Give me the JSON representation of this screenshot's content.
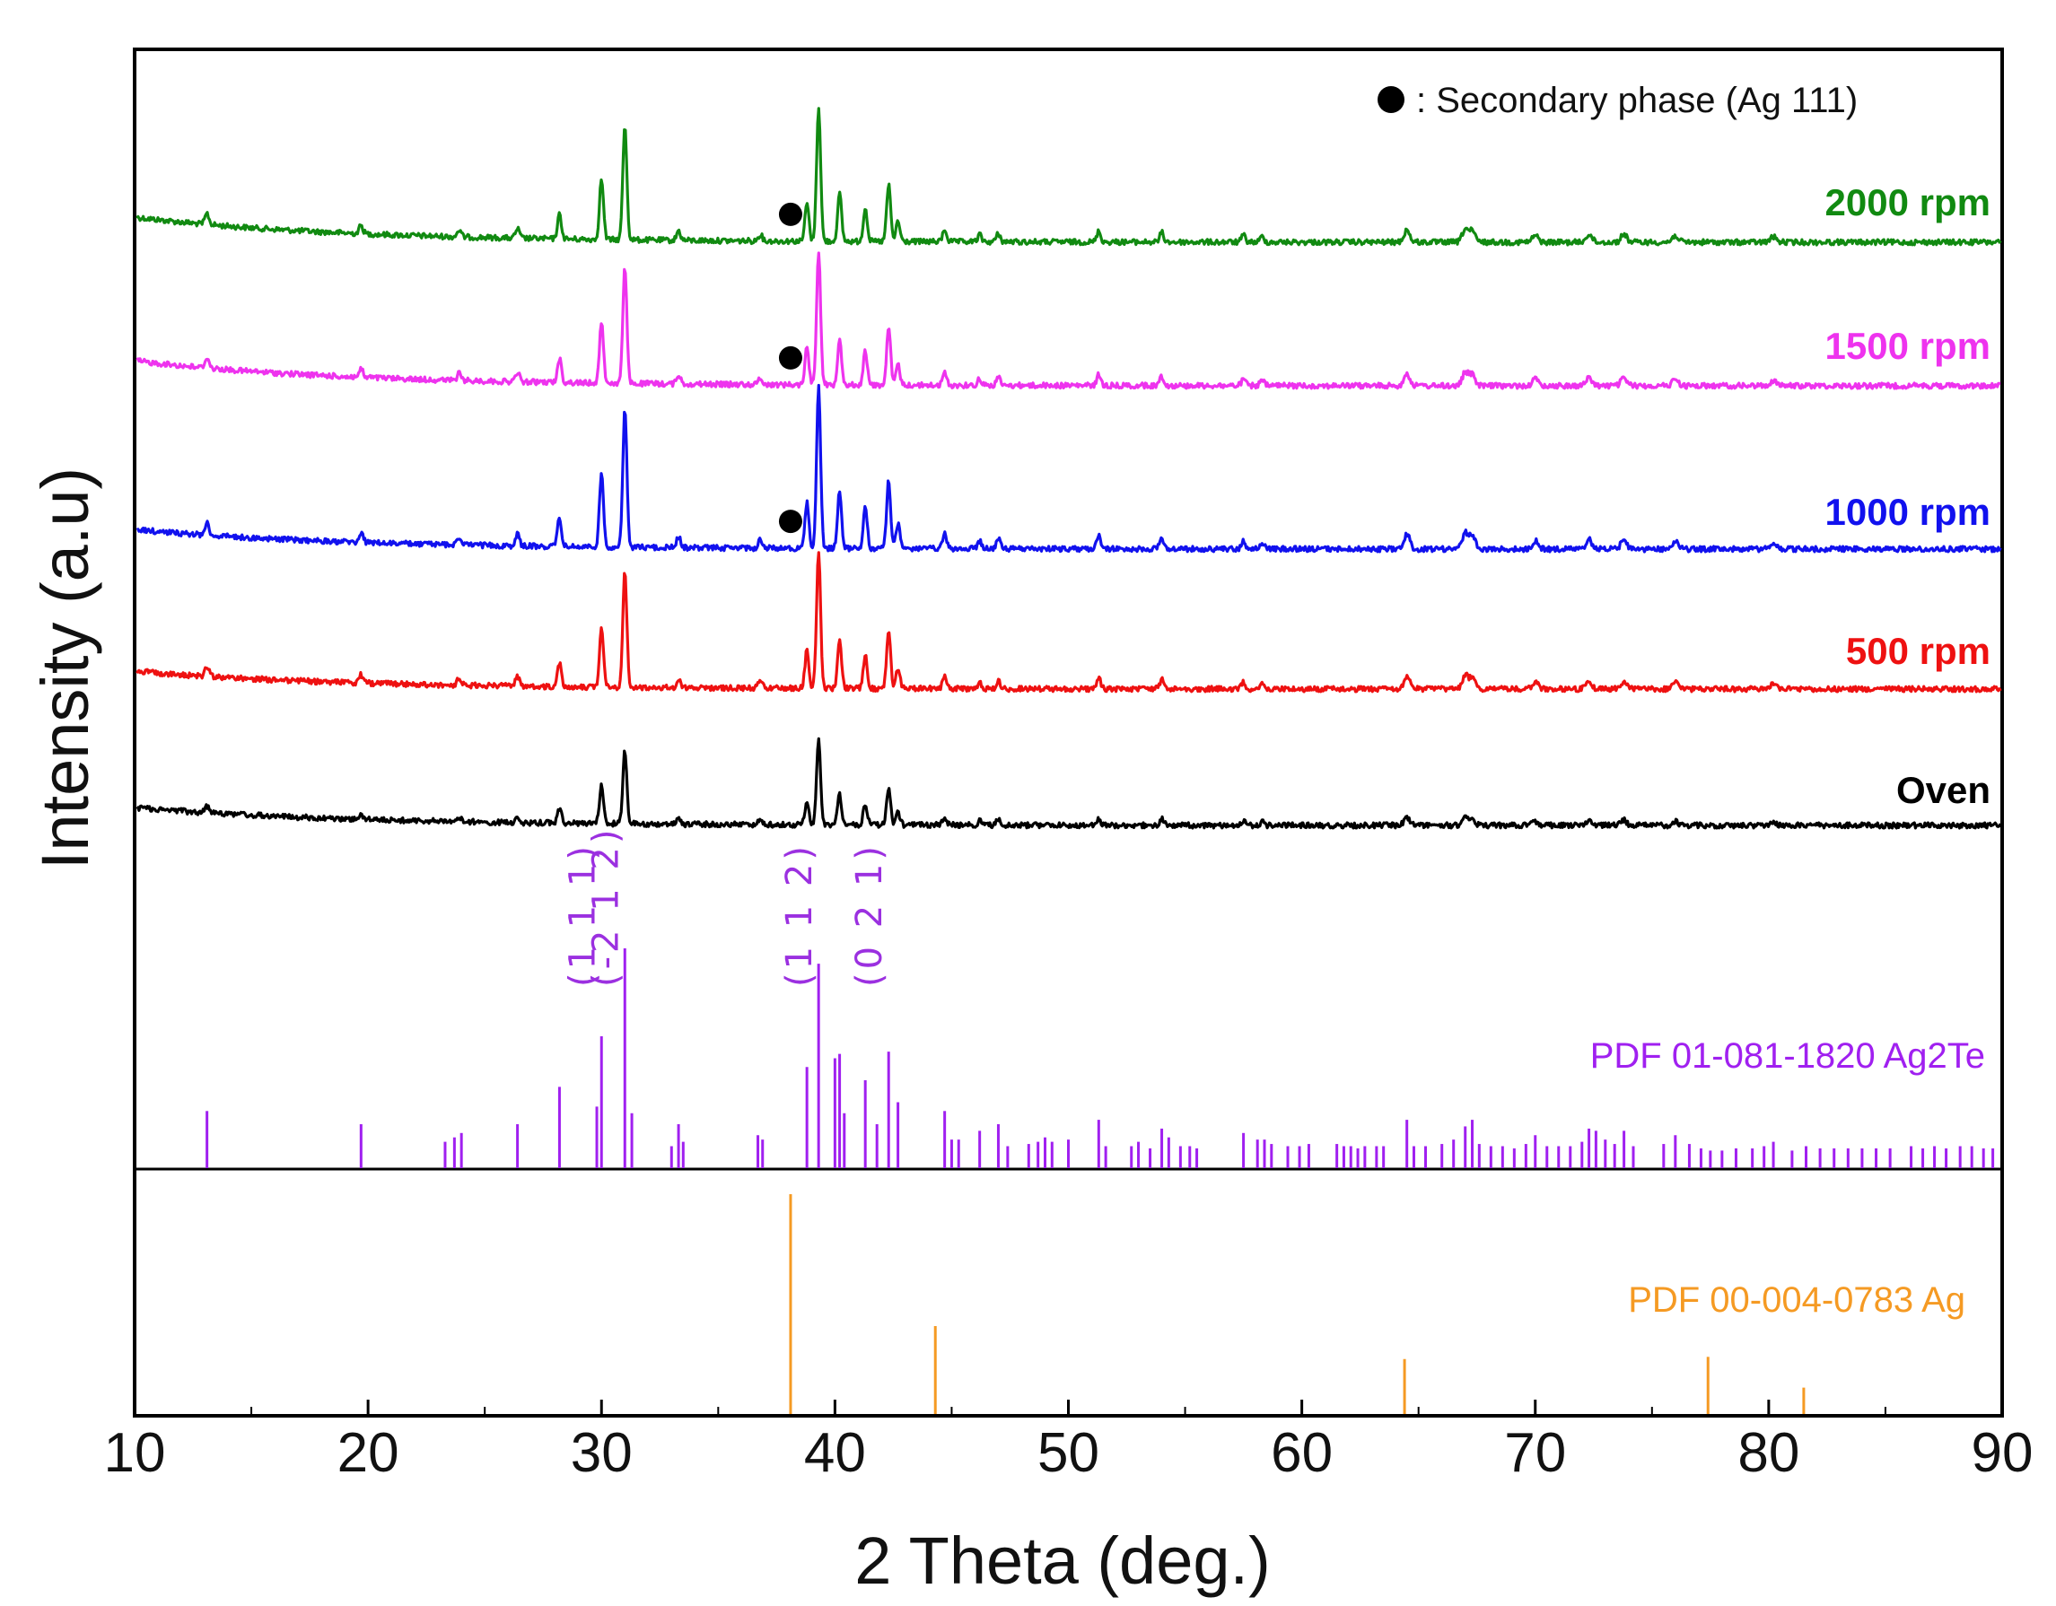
{
  "chart_data": {
    "type": "line",
    "xlabel": "2 Theta (deg.)",
    "ylabel": "Intensity (a.u)",
    "xlim": [
      10,
      90
    ],
    "xticks": [
      "10",
      "20",
      "30",
      "40",
      "50",
      "60",
      "70",
      "80",
      "90"
    ],
    "grid": false,
    "legend": {
      "symbol": "filled-circle",
      "text": ": Secondary phase (Ag 111)",
      "placement": "top-right"
    },
    "series": [
      {
        "name": "2000 rpm",
        "color": "#118a11",
        "offset": 4,
        "has_secondary_phase": true
      },
      {
        "name": "1500 rpm",
        "color": "#ee33ee",
        "offset": 3,
        "has_secondary_phase": true
      },
      {
        "name": "1000 rpm",
        "color": "#1111ee",
        "offset": 2,
        "has_secondary_phase": true
      },
      {
        "name": "500 rpm",
        "color": "#ee1111",
        "offset": 1,
        "has_secondary_phase": false
      },
      {
        "name": "Oven",
        "color": "#000000",
        "offset": 0,
        "has_secondary_phase": false
      }
    ],
    "secondary_phase_x": 38.1,
    "main_peaks": [
      {
        "x": 13.1,
        "i": 0.08
      },
      {
        "x": 19.7,
        "i": 0.06
      },
      {
        "x": 23.9,
        "i": 0.05
      },
      {
        "x": 26.4,
        "i": 0.07
      },
      {
        "x": 28.2,
        "i": 0.18
      },
      {
        "x": 30.0,
        "i": 0.45
      },
      {
        "x": 31.0,
        "i": 0.85
      },
      {
        "x": 33.3,
        "i": 0.07
      },
      {
        "x": 36.8,
        "i": 0.05
      },
      {
        "x": 38.8,
        "i": 0.28
      },
      {
        "x": 39.3,
        "i": 1.0
      },
      {
        "x": 40.2,
        "i": 0.35
      },
      {
        "x": 41.3,
        "i": 0.25
      },
      {
        "x": 42.3,
        "i": 0.42
      },
      {
        "x": 42.7,
        "i": 0.15
      },
      {
        "x": 44.7,
        "i": 0.09
      },
      {
        "x": 46.2,
        "i": 0.05
      },
      {
        "x": 47.0,
        "i": 0.06
      },
      {
        "x": 51.3,
        "i": 0.08
      },
      {
        "x": 54.0,
        "i": 0.07
      },
      {
        "x": 57.5,
        "i": 0.05
      },
      {
        "x": 58.3,
        "i": 0.04
      },
      {
        "x": 64.5,
        "i": 0.09
      },
      {
        "x": 67.0,
        "i": 0.1
      },
      {
        "x": 67.3,
        "i": 0.08
      },
      {
        "x": 70.0,
        "i": 0.05
      },
      {
        "x": 72.3,
        "i": 0.06
      },
      {
        "x": 73.8,
        "i": 0.06
      },
      {
        "x": 76.0,
        "i": 0.05
      },
      {
        "x": 80.2,
        "i": 0.04
      }
    ],
    "ag2te_reference": {
      "label": "PDF 01-081-1820 Ag2Te",
      "color": "#a020f0",
      "lines": [
        {
          "x": 13.1,
          "i": 0.26
        },
        {
          "x": 19.7,
          "i": 0.2
        },
        {
          "x": 23.3,
          "i": 0.12
        },
        {
          "x": 23.7,
          "i": 0.14
        },
        {
          "x": 24.0,
          "i": 0.16
        },
        {
          "x": 26.4,
          "i": 0.2
        },
        {
          "x": 28.2,
          "i": 0.37
        },
        {
          "x": 29.8,
          "i": 0.28
        },
        {
          "x": 30.0,
          "i": 0.6
        },
        {
          "x": 31.0,
          "i": 1.0
        },
        {
          "x": 31.3,
          "i": 0.25
        },
        {
          "x": 33.0,
          "i": 0.1
        },
        {
          "x": 33.3,
          "i": 0.2
        },
        {
          "x": 33.5,
          "i": 0.12
        },
        {
          "x": 36.7,
          "i": 0.15
        },
        {
          "x": 36.9,
          "i": 0.13
        },
        {
          "x": 38.8,
          "i": 0.46
        },
        {
          "x": 39.3,
          "i": 0.93
        },
        {
          "x": 40.0,
          "i": 0.5
        },
        {
          "x": 40.2,
          "i": 0.52
        },
        {
          "x": 40.4,
          "i": 0.25
        },
        {
          "x": 41.3,
          "i": 0.4
        },
        {
          "x": 41.8,
          "i": 0.2
        },
        {
          "x": 42.3,
          "i": 0.53
        },
        {
          "x": 42.7,
          "i": 0.3
        },
        {
          "x": 44.7,
          "i": 0.26
        },
        {
          "x": 45.0,
          "i": 0.13
        },
        {
          "x": 45.3,
          "i": 0.13
        },
        {
          "x": 46.2,
          "i": 0.17
        },
        {
          "x": 47.0,
          "i": 0.2
        },
        {
          "x": 47.4,
          "i": 0.1
        },
        {
          "x": 48.3,
          "i": 0.11
        },
        {
          "x": 48.7,
          "i": 0.12
        },
        {
          "x": 49.0,
          "i": 0.14
        },
        {
          "x": 49.3,
          "i": 0.12
        },
        {
          "x": 50.0,
          "i": 0.13
        },
        {
          "x": 51.3,
          "i": 0.22
        },
        {
          "x": 51.6,
          "i": 0.1
        },
        {
          "x": 52.7,
          "i": 0.1
        },
        {
          "x": 53.0,
          "i": 0.12
        },
        {
          "x": 53.5,
          "i": 0.09
        },
        {
          "x": 54.0,
          "i": 0.18
        },
        {
          "x": 54.3,
          "i": 0.14
        },
        {
          "x": 54.8,
          "i": 0.1
        },
        {
          "x": 55.2,
          "i": 0.1
        },
        {
          "x": 55.5,
          "i": 0.09
        },
        {
          "x": 57.5,
          "i": 0.16
        },
        {
          "x": 58.1,
          "i": 0.13
        },
        {
          "x": 58.4,
          "i": 0.13
        },
        {
          "x": 58.7,
          "i": 0.11
        },
        {
          "x": 59.4,
          "i": 0.1
        },
        {
          "x": 59.9,
          "i": 0.1
        },
        {
          "x": 60.3,
          "i": 0.11
        },
        {
          "x": 61.5,
          "i": 0.11
        },
        {
          "x": 61.8,
          "i": 0.1
        },
        {
          "x": 62.1,
          "i": 0.1
        },
        {
          "x": 62.4,
          "i": 0.09
        },
        {
          "x": 62.7,
          "i": 0.1
        },
        {
          "x": 63.2,
          "i": 0.1
        },
        {
          "x": 63.5,
          "i": 0.1
        },
        {
          "x": 64.5,
          "i": 0.22
        },
        {
          "x": 64.8,
          "i": 0.1
        },
        {
          "x": 65.3,
          "i": 0.1
        },
        {
          "x": 66.0,
          "i": 0.11
        },
        {
          "x": 66.5,
          "i": 0.13
        },
        {
          "x": 67.0,
          "i": 0.19
        },
        {
          "x": 67.3,
          "i": 0.22
        },
        {
          "x": 67.6,
          "i": 0.11
        },
        {
          "x": 68.1,
          "i": 0.1
        },
        {
          "x": 68.6,
          "i": 0.1
        },
        {
          "x": 69.1,
          "i": 0.09
        },
        {
          "x": 69.6,
          "i": 0.11
        },
        {
          "x": 70.0,
          "i": 0.15
        },
        {
          "x": 70.5,
          "i": 0.1
        },
        {
          "x": 71.0,
          "i": 0.1
        },
        {
          "x": 71.5,
          "i": 0.1
        },
        {
          "x": 72.0,
          "i": 0.12
        },
        {
          "x": 72.3,
          "i": 0.18
        },
        {
          "x": 72.6,
          "i": 0.17
        },
        {
          "x": 73.0,
          "i": 0.13
        },
        {
          "x": 73.4,
          "i": 0.11
        },
        {
          "x": 73.8,
          "i": 0.17
        },
        {
          "x": 74.2,
          "i": 0.1
        },
        {
          "x": 75.5,
          "i": 0.11
        },
        {
          "x": 76.0,
          "i": 0.15
        },
        {
          "x": 76.6,
          "i": 0.11
        },
        {
          "x": 77.1,
          "i": 0.09
        },
        {
          "x": 77.5,
          "i": 0.08
        },
        {
          "x": 78.0,
          "i": 0.08
        },
        {
          "x": 78.6,
          "i": 0.09
        },
        {
          "x": 79.3,
          "i": 0.09
        },
        {
          "x": 79.8,
          "i": 0.1
        },
        {
          "x": 80.2,
          "i": 0.12
        },
        {
          "x": 81.0,
          "i": 0.08
        },
        {
          "x": 81.6,
          "i": 0.1
        },
        {
          "x": 82.2,
          "i": 0.09
        },
        {
          "x": 82.8,
          "i": 0.09
        },
        {
          "x": 83.4,
          "i": 0.09
        },
        {
          "x": 84.0,
          "i": 0.09
        },
        {
          "x": 84.6,
          "i": 0.09
        },
        {
          "x": 85.2,
          "i": 0.09
        },
        {
          "x": 86.1,
          "i": 0.1
        },
        {
          "x": 86.6,
          "i": 0.09
        },
        {
          "x": 87.1,
          "i": 0.1
        },
        {
          "x": 87.6,
          "i": 0.09
        },
        {
          "x": 88.2,
          "i": 0.1
        },
        {
          "x": 88.7,
          "i": 0.1
        },
        {
          "x": 89.2,
          "i": 0.09
        },
        {
          "x": 89.6,
          "i": 0.09
        }
      ],
      "hkl_labels": [
        {
          "text": "(1 1 1)",
          "x": 30.0
        },
        {
          "text": "(-2 1 2)",
          "x": 31.0
        },
        {
          "text": "(1 1 2)",
          "x": 39.3
        },
        {
          "text": "(0 2 1)",
          "x": 42.3
        }
      ]
    },
    "ag_reference": {
      "label": "PDF 00-004-0783 Ag",
      "color": "#f59a23",
      "lines": [
        {
          "x": 38.1,
          "i": 1.0
        },
        {
          "x": 44.3,
          "i": 0.4
        },
        {
          "x": 64.4,
          "i": 0.25
        },
        {
          "x": 77.4,
          "i": 0.26
        },
        {
          "x": 81.5,
          "i": 0.12
        }
      ]
    }
  }
}
